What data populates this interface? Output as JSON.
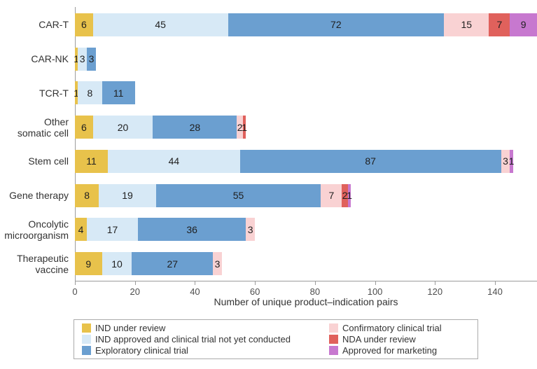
{
  "chart_data": {
    "type": "bar",
    "orientation": "horizontal",
    "stacked": true,
    "title": "",
    "xlabel": "Number of unique product–indication pairs",
    "ylabel": "",
    "x_ticks": [
      0,
      20,
      40,
      60,
      80,
      100,
      120,
      140
    ],
    "xlim": [
      0,
      154
    ],
    "grid": false,
    "legend_position": "bottom-box",
    "categories": [
      "CAR-T",
      "CAR-NK",
      "TCR-T",
      "Other somatic cell",
      "Stem cell",
      "Gene therapy",
      "Oncolytic microorganism",
      "Therapeutic vaccine"
    ],
    "category_lines": [
      [
        "CAR-T"
      ],
      [
        "CAR-NK"
      ],
      [
        "TCR-T"
      ],
      [
        "Other",
        "somatic cell"
      ],
      [
        "Stem cell"
      ],
      [
        "Gene therapy"
      ],
      [
        "Oncolytic",
        "microorganism"
      ],
      [
        "Therapeutic",
        "vaccine"
      ]
    ],
    "series": [
      {
        "name": "IND under review",
        "color": "#E8C24B",
        "values": [
          6,
          1,
          1,
          6,
          11,
          8,
          4,
          9
        ]
      },
      {
        "name": "IND approved and clinical trial not yet conducted",
        "color": "#D7E9F6",
        "values": [
          45,
          3,
          8,
          20,
          44,
          19,
          17,
          10
        ]
      },
      {
        "name": "Exploratory clinical trial",
        "color": "#6B9FD0",
        "values": [
          72,
          3,
          11,
          28,
          87,
          55,
          36,
          27
        ]
      },
      {
        "name": "Confirmatory clinical trial",
        "color": "#F9D2D3",
        "values": [
          15,
          0,
          0,
          2,
          3,
          7,
          3,
          3
        ]
      },
      {
        "name": "NDA under review",
        "color": "#E0615C",
        "values": [
          7,
          0,
          0,
          1,
          0,
          2,
          0,
          0
        ]
      },
      {
        "name": "Approved for marketing",
        "color": "#C778CF",
        "values": [
          9,
          0,
          0,
          0,
          1,
          1,
          0,
          0
        ]
      }
    ],
    "bar_totals": [
      154,
      7,
      20,
      57,
      146,
      92,
      60,
      49
    ]
  }
}
